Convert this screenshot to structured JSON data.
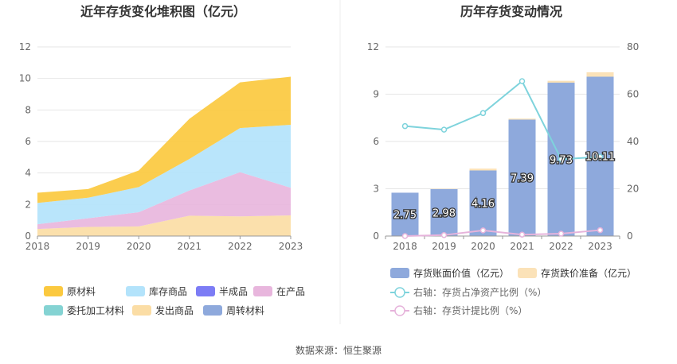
{
  "footer": {
    "source": "数据来源：恒生聚源"
  },
  "colors": {
    "raw_material": "#fbc93f",
    "stock_goods": "#b3e3fb",
    "semi_finished": "#7c7cf5",
    "wip": "#e8b6dd",
    "consigned": "#84d3d3",
    "shipped": "#fbdda5",
    "revolving": "#8ea9dc",
    "book_value": "#8ea9dc",
    "impairment": "#fbe2b8",
    "ratio_net_assets": "#7ed3dc",
    "ratio_provision": "#e6b3db",
    "grid": "#e6e6e6",
    "axis_text": "#666666"
  },
  "chart_data": [
    {
      "type": "area",
      "stacked": true,
      "title": "近年存货变化堆积图（亿元）",
      "x": [
        "2018",
        "2019",
        "2020",
        "2021",
        "2022",
        "2023"
      ],
      "ylim": [
        0,
        12
      ],
      "yticks": [
        "0",
        "2",
        "4",
        "6",
        "8",
        "10",
        "12"
      ],
      "grid": true,
      "legend_position": "bottom",
      "series": [
        {
          "name": "原材料",
          "color_key": "raw_material",
          "values": [
            0.65,
            0.55,
            1.05,
            2.55,
            2.9,
            3.05
          ]
        },
        {
          "name": "库存商品",
          "color_key": "stock_goods",
          "values": [
            1.35,
            1.3,
            1.6,
            2.0,
            2.8,
            4.0
          ]
        },
        {
          "name": "半成品",
          "color_key": "semi_finished",
          "values": [
            0,
            0,
            0,
            0,
            0,
            0
          ]
        },
        {
          "name": "在产品",
          "color_key": "wip",
          "values": [
            0.3,
            0.55,
            0.9,
            1.6,
            2.8,
            1.75
          ]
        },
        {
          "name": "委托加工材料",
          "color_key": "consigned",
          "values": [
            0,
            0,
            0,
            0,
            0,
            0
          ]
        },
        {
          "name": "发出商品",
          "color_key": "shipped",
          "values": [
            0.45,
            0.58,
            0.61,
            1.29,
            1.25,
            1.31
          ]
        },
        {
          "name": "周转材料",
          "color_key": "revolving",
          "values": [
            0,
            0,
            0,
            0,
            0,
            0
          ]
        }
      ],
      "legend_order": [
        "原材料",
        "库存商品",
        "半成品",
        "在产品",
        "委托加工材料",
        "发出商品",
        "周转材料"
      ]
    },
    {
      "type": "bar",
      "title": "历年存货变动情况",
      "x": [
        "2018",
        "2019",
        "2020",
        "2021",
        "2022",
        "2023"
      ],
      "ylim": [
        0,
        12
      ],
      "yticks": [
        "0",
        "3",
        "6",
        "9",
        "12"
      ],
      "ylim_right": [
        0,
        80
      ],
      "yticks_right": [
        "0",
        "20",
        "40",
        "60",
        "80"
      ],
      "grid": true,
      "legend_position": "bottom",
      "bars": [
        {
          "name": "存货账面价值（亿元）",
          "color_key": "book_value",
          "values": [
            2.75,
            2.98,
            4.16,
            7.39,
            9.73,
            10.11
          ],
          "labels": [
            "2.75",
            "2.98",
            "4.16",
            "7.39",
            "9.73",
            "10.11"
          ]
        },
        {
          "name": "存货跌价准备（亿元）",
          "color_key": "impairment",
          "values": [
            0.0,
            0.02,
            0.12,
            0.06,
            0.12,
            0.28
          ]
        }
      ],
      "lines": [
        {
          "name": "右轴：存货占净资产比例（%）",
          "color_key": "ratio_net_assets",
          "values": [
            46.5,
            45.0,
            52.0,
            65.5,
            32.5,
            33.5
          ]
        },
        {
          "name": "右轴：存货计提比例（%）",
          "color_key": "ratio_provision",
          "values": [
            0.0,
            0.4,
            2.4,
            0.6,
            1.0,
            2.5
          ]
        }
      ]
    }
  ]
}
